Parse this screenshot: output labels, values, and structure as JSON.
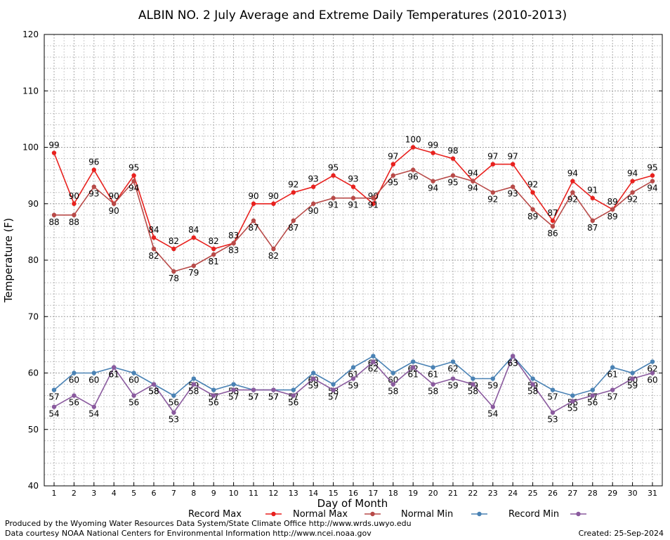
{
  "chart_data": {
    "type": "line",
    "title": "ALBIN NO. 2 July Average and Extreme Daily Temperatures (2010-2013)",
    "xlabel": "Day of Month",
    "ylabel": "Temperature (F)",
    "ylim": [
      40,
      120
    ],
    "yticks": [
      40,
      50,
      60,
      70,
      80,
      90,
      100,
      110,
      120
    ],
    "grid": true,
    "legend_position": "bottom",
    "x": [
      1,
      2,
      3,
      4,
      5,
      6,
      7,
      8,
      9,
      10,
      11,
      12,
      13,
      14,
      15,
      16,
      17,
      18,
      19,
      20,
      21,
      22,
      23,
      24,
      25,
      26,
      27,
      28,
      29,
      30,
      31
    ],
    "series": [
      {
        "name": "Record Max",
        "color": "#e8211e",
        "values": [
          99,
          90,
          96,
          90,
          95,
          84,
          82,
          84,
          82,
          83,
          90,
          90,
          92,
          93,
          95,
          93,
          90,
          97,
          100,
          99,
          98,
          94,
          97,
          97,
          92,
          87,
          94,
          91,
          89,
          94,
          95
        ]
      },
      {
        "name": "Normal Max",
        "color": "#b84a48",
        "values": [
          88,
          88,
          93,
          90,
          94,
          82,
          78,
          79,
          81,
          83,
          87,
          82,
          87,
          90,
          91,
          91,
          91,
          95,
          96,
          94,
          95,
          94,
          92,
          93,
          89,
          86,
          92,
          87,
          89,
          92,
          94
        ]
      },
      {
        "name": "Normal Min",
        "color": "#4a82b4",
        "values": [
          57,
          60,
          60,
          61,
          60,
          58,
          56,
          59,
          57,
          58,
          57,
          57,
          57,
          60,
          58,
          61,
          63,
          60,
          62,
          61,
          62,
          59,
          59,
          63,
          59,
          57,
          56,
          57,
          61,
          60,
          62
        ]
      },
      {
        "name": "Record Min",
        "color": "#8a5a9e",
        "values": [
          54,
          56,
          54,
          61,
          56,
          58,
          53,
          58,
          56,
          57,
          57,
          57,
          56,
          59,
          57,
          59,
          62,
          58,
          61,
          58,
          59,
          58,
          54,
          63,
          58,
          53,
          55,
          56,
          57,
          59,
          60
        ]
      }
    ]
  },
  "footer": {
    "produced_by": "Produced by the Wyoming Water Resources Data System/State Climate Office http://www.wrds.uwyo.edu",
    "courtesy": "Data courtesy NOAA National Centers for Environmental Information http://www.ncei.noaa.gov",
    "created": "Created:  25-Sep-2024"
  }
}
